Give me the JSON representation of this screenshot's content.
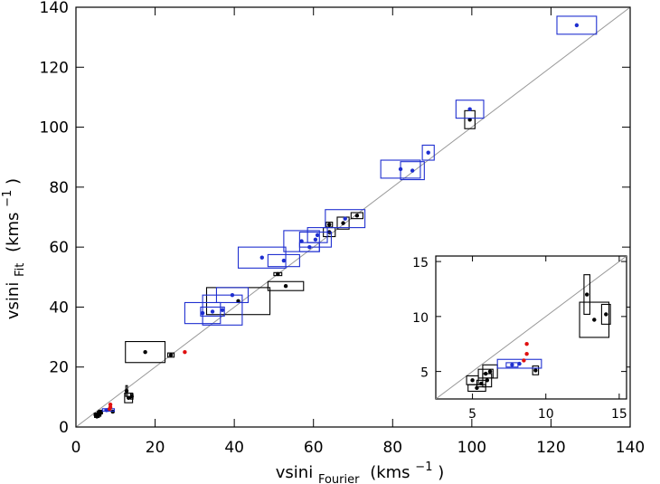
{
  "chart_data": {
    "type": "scatter",
    "title": "",
    "xlabel": {
      "main": "vsini",
      "sub": "Fourier",
      "unit": "(kms",
      "exp": "−1",
      "close": ")"
    },
    "ylabel": {
      "main": "vsini",
      "sub": "Fit",
      "unit": "(kms",
      "exp": "−1",
      "close": ")"
    },
    "xlim": [
      0,
      140
    ],
    "ylim": [
      0,
      140
    ],
    "xticks": [
      0,
      20,
      40,
      60,
      80,
      100,
      120,
      140
    ],
    "yticks": [
      0,
      20,
      40,
      60,
      80,
      100,
      120,
      140
    ],
    "grid": false,
    "reference_line": "y = x",
    "colors": {
      "black": "#000000",
      "blue": "#1f2fd0",
      "red": "#e01010",
      "line": "#999999"
    },
    "series": [
      {
        "color": "black",
        "points": [
          {
            "x": 17.5,
            "y": 25,
            "xerr": 5,
            "yerr": 3.5
          },
          {
            "x": 24.0,
            "y": 24,
            "xerr": 0.8,
            "yerr": 0.7
          },
          {
            "x": 41,
            "y": 42,
            "xerr": 8,
            "yerr": 4.5
          },
          {
            "x": 53,
            "y": 47,
            "xerr": 4.5,
            "yerr": 1.5
          },
          {
            "x": 51,
            "y": 51,
            "xerr": 1,
            "yerr": 0.5
          },
          {
            "x": 64,
            "y": 65,
            "xerr": 1.5,
            "yerr": 1.5
          },
          {
            "x": 64,
            "y": 67.5,
            "xerr": 0.8,
            "yerr": 0.8
          },
          {
            "x": 67.5,
            "y": 68,
            "xerr": 1.5,
            "yerr": 2
          },
          {
            "x": 71,
            "y": 70.5,
            "xerr": 1.5,
            "yerr": 1
          },
          {
            "x": 99.5,
            "y": 102.5,
            "xerr": 1.3,
            "yerr": 3
          },
          {
            "x": 5.0,
            "y": 4.2,
            "xerr": 0.4,
            "yerr": 0.4
          },
          {
            "x": 5.3,
            "y": 3.5,
            "xerr": 0.6,
            "yerr": 0.3
          },
          {
            "x": 5.6,
            "y": 3.9,
            "xerr": 0.3,
            "yerr": 0.3
          },
          {
            "x": 5.9,
            "y": 4.8,
            "xerr": 0.5,
            "yerr": 0.4
          },
          {
            "x": 6.0,
            "y": 4.2,
            "xerr": 0.3,
            "yerr": 0.6
          },
          {
            "x": 6.2,
            "y": 5.0,
            "xerr": 0.5,
            "yerr": 0.6
          },
          {
            "x": 9.3,
            "y": 5.1,
            "xerr": 0.2,
            "yerr": 0.4
          },
          {
            "x": 12.8,
            "y": 12.0,
            "xerr": 0.2,
            "yerr": 1.8
          },
          {
            "x": 13.3,
            "y": 9.7,
            "xerr": 1.0,
            "yerr": 1.6
          },
          {
            "x": 14.1,
            "y": 10.2,
            "xerr": 0.3,
            "yerr": 0.9
          }
        ]
      },
      {
        "color": "blue",
        "points": [
          {
            "x": 32,
            "y": 38,
            "xerr": 4.5,
            "yerr": 3.5
          },
          {
            "x": 34.5,
            "y": 38.5,
            "xerr": 3,
            "yerr": 1.5
          },
          {
            "x": 37,
            "y": 39,
            "xerr": 5,
            "yerr": 5
          },
          {
            "x": 39.5,
            "y": 44,
            "xerr": 4,
            "yerr": 2.5
          },
          {
            "x": 47,
            "y": 56.5,
            "xerr": 6,
            "yerr": 3.5
          },
          {
            "x": 52.5,
            "y": 55.5,
            "xerr": 4,
            "yerr": 2
          },
          {
            "x": 57,
            "y": 62,
            "xerr": 4.5,
            "yerr": 3.5
          },
          {
            "x": 60.5,
            "y": 62.5,
            "xerr": 4,
            "yerr": 2.5
          },
          {
            "x": 59,
            "y": 60,
            "xerr": 2.5,
            "yerr": 1.5
          },
          {
            "x": 61,
            "y": 64,
            "xerr": 2.5,
            "yerr": 2.5
          },
          {
            "x": 68,
            "y": 69.5,
            "xerr": 5,
            "yerr": 3
          },
          {
            "x": 82,
            "y": 86,
            "xerr": 5,
            "yerr": 3
          },
          {
            "x": 85,
            "y": 85.5,
            "xerr": 3,
            "yerr": 3
          },
          {
            "x": 89,
            "y": 91.5,
            "xerr": 1.5,
            "yerr": 2.5
          },
          {
            "x": 99.5,
            "y": 106,
            "xerr": 3.5,
            "yerr": 3
          },
          {
            "x": 126.5,
            "y": 134,
            "xerr": 5,
            "yerr": 3
          },
          {
            "x": 8.2,
            "y": 5.7,
            "xerr": 1.5,
            "yerr": 0.4
          },
          {
            "x": 7.7,
            "y": 5.6,
            "xerr": 0.4,
            "yerr": 0.2
          }
        ]
      },
      {
        "color": "red",
        "points": [
          {
            "x": 27.5,
            "y": 25
          },
          {
            "x": 8.7,
            "y": 7.5
          },
          {
            "x": 8.7,
            "y": 6.6
          },
          {
            "x": 8.5,
            "y": 6.0
          }
        ]
      }
    ],
    "inset": {
      "xlim": [
        2.5,
        15.5
      ],
      "ylim": [
        2.5,
        15.5
      ],
      "xticks": [
        5,
        10,
        15
      ],
      "yticks": [
        5,
        10,
        15
      ],
      "zoom_of": "main panel, x 2.5–15.5, y 2.5–15.5"
    }
  }
}
